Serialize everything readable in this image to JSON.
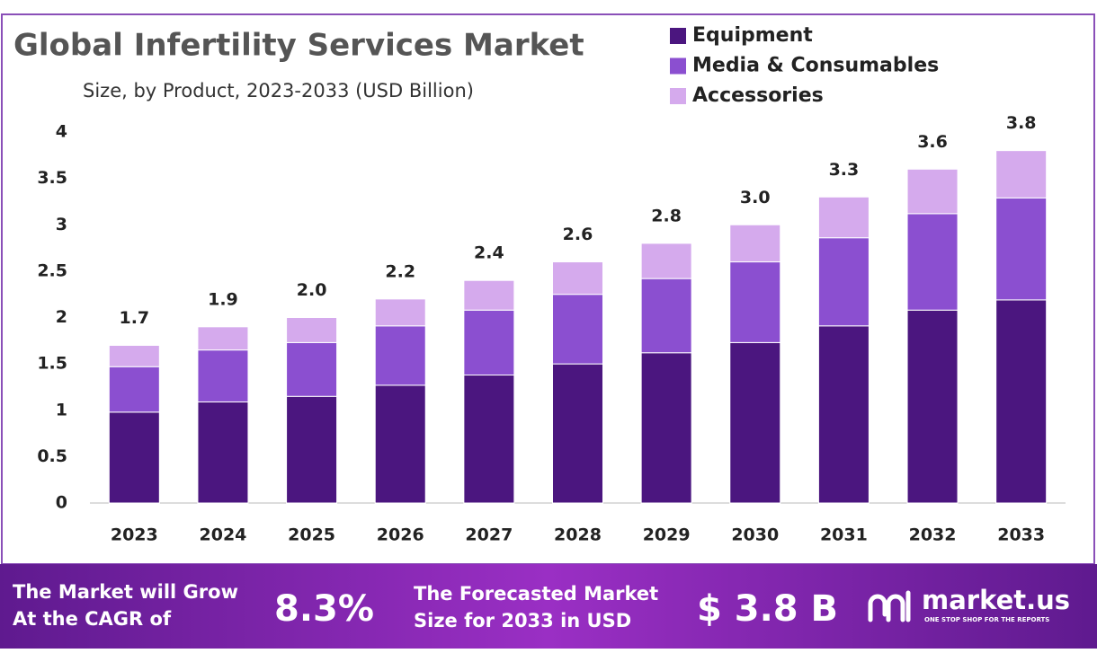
{
  "chart_data": {
    "type": "stacked-bar",
    "title": "Global Infertility Services Market",
    "subtitle": "Size, by Product, 2023-2033 (USD Billion)",
    "categories": [
      "2023",
      "2024",
      "2025",
      "2026",
      "2027",
      "2028",
      "2029",
      "2030",
      "2031",
      "2032",
      "2033"
    ],
    "series": [
      {
        "name": "Equipment",
        "color": "#4b167f",
        "values": [
          0.98,
          1.09,
          1.15,
          1.27,
          1.38,
          1.5,
          1.62,
          1.73,
          1.91,
          2.08,
          2.19
        ]
      },
      {
        "name": "Media & Consumables",
        "color": "#8b4fd0",
        "values": [
          0.49,
          0.56,
          0.58,
          0.64,
          0.7,
          0.75,
          0.8,
          0.87,
          0.95,
          1.04,
          1.1
        ]
      },
      {
        "name": "Accessories",
        "color": "#d5aaed",
        "values": [
          0.23,
          0.25,
          0.27,
          0.29,
          0.32,
          0.35,
          0.38,
          0.4,
          0.44,
          0.48,
          0.51
        ]
      }
    ],
    "totals": {
      "values": [
        1.7,
        1.9,
        2.0,
        2.2,
        2.4,
        2.6,
        2.8,
        3.0,
        3.3,
        3.6,
        3.8
      ],
      "value_labels": [
        "1.7",
        "1.9",
        "2.0",
        "2.2",
        "2.4",
        "2.6",
        "2.8",
        "3.0",
        "3.3",
        "3.6",
        "3.8"
      ]
    },
    "ylim": [
      0,
      4
    ],
    "yticks": [
      0,
      0.5,
      1,
      1.5,
      2,
      2.5,
      3,
      3.5,
      4
    ],
    "grid": false,
    "legend": "top-right"
  },
  "footer": {
    "cagr_text": [
      "The Market will Grow",
      "At the CAGR of"
    ],
    "cagr_value": "8.3%",
    "forecast_text": [
      "The Forecasted Market",
      "Size for 2033 in USD"
    ],
    "forecast_value": "$ 3.8 B",
    "brand": "market.us",
    "tagline": "ONE STOP SHOP FOR THE REPORTS"
  }
}
